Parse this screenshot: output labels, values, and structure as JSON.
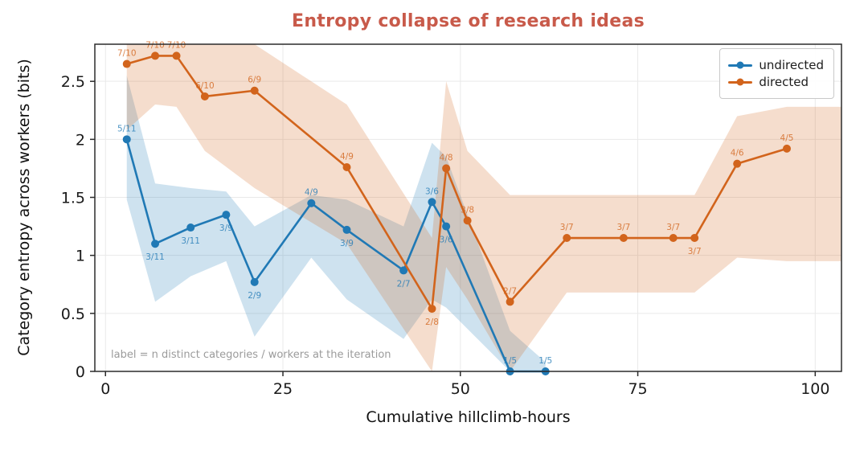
{
  "chart_data": {
    "type": "line",
    "title": "Entropy collapse of research ideas",
    "xlabel": "Cumulative hillclimb-hours",
    "ylabel": "Category entropy across workers (bits)",
    "annotation": "label = n distinct categories / workers at the iteration",
    "legend_position": "top-right",
    "grid": true,
    "xlim": [
      -1.5,
      103.7
    ],
    "ylim": [
      0,
      2.82
    ],
    "xticks": [
      0,
      25,
      50,
      75,
      100
    ],
    "xtick_labels": [
      "0",
      "25",
      "50",
      "75",
      "100"
    ],
    "yticks": [
      0,
      0.5,
      1,
      1.5,
      2,
      2.5
    ],
    "ytick_labels": [
      "0",
      "0.5",
      "1",
      "1.5",
      "2",
      "2.5"
    ],
    "colors": {
      "undirected": "#2079b5",
      "directed": "#d2641c",
      "title": "#c85a4a",
      "annotation": "#9b9b9b",
      "grid": "#e9e9e9",
      "spine": "#2b2b2b",
      "tick_text": "#1a1a1a"
    },
    "series": [
      {
        "name": "undirected",
        "color": "#2079b5",
        "points": [
          {
            "x": 3,
            "y": 2.0,
            "label": "5/11",
            "label_pos": "above"
          },
          {
            "x": 7,
            "y": 1.1,
            "label": "3/11",
            "label_pos": "below"
          },
          {
            "x": 12,
            "y": 1.24,
            "label": "3/11",
            "label_pos": "below"
          },
          {
            "x": 17,
            "y": 1.35,
            "label": "3/9",
            "label_pos": "below"
          },
          {
            "x": 21,
            "y": 0.77,
            "label": "2/9",
            "label_pos": "below"
          },
          {
            "x": 29,
            "y": 1.45,
            "label": "4/9",
            "label_pos": "above"
          },
          {
            "x": 34,
            "y": 1.22,
            "label": "3/9",
            "label_pos": "below"
          },
          {
            "x": 42,
            "y": 0.87,
            "label": "2/7",
            "label_pos": "below"
          },
          {
            "x": 46,
            "y": 1.46,
            "label": "3/6",
            "label_pos": "above"
          },
          {
            "x": 48,
            "y": 1.25,
            "label": "3/6",
            "label_pos": "below"
          },
          {
            "x": 57,
            "y": 0.0,
            "label": "1/5",
            "label_pos": "above"
          },
          {
            "x": 62,
            "y": 0.0,
            "label": "1/5",
            "label_pos": "above"
          }
        ],
        "band": {
          "x": [
            3,
            7,
            12,
            17,
            21,
            29,
            34,
            42,
            46,
            48,
            57,
            62
          ],
          "upper": [
            2.55,
            1.62,
            1.58,
            1.55,
            1.25,
            1.52,
            1.48,
            1.25,
            1.97,
            1.85,
            0.35,
            0.08
          ],
          "lower": [
            1.48,
            0.6,
            0.82,
            0.95,
            0.3,
            0.98,
            0.62,
            0.28,
            0.62,
            0.55,
            0.0,
            0.0
          ]
        }
      },
      {
        "name": "directed",
        "color": "#d2641c",
        "points": [
          {
            "x": 3,
            "y": 2.65,
            "label": "7/10",
            "label_pos": "above"
          },
          {
            "x": 7,
            "y": 2.72,
            "label": "7/10",
            "label_pos": "above"
          },
          {
            "x": 10,
            "y": 2.72,
            "label": "7/10",
            "label_pos": "above"
          },
          {
            "x": 14,
            "y": 2.37,
            "label": "6/10",
            "label_pos": "above"
          },
          {
            "x": 21,
            "y": 2.42,
            "label": "6/9",
            "label_pos": "above"
          },
          {
            "x": 34,
            "y": 1.76,
            "label": "4/9",
            "label_pos": "above"
          },
          {
            "x": 46,
            "y": 0.54,
            "label": "2/8",
            "label_pos": "below"
          },
          {
            "x": 48,
            "y": 1.75,
            "label": "4/8",
            "label_pos": "above"
          },
          {
            "x": 51,
            "y": 1.3,
            "label": "3/8",
            "label_pos": "above"
          },
          {
            "x": 57,
            "y": 0.6,
            "label": "2/7",
            "label_pos": "above"
          },
          {
            "x": 65,
            "y": 1.15,
            "label": "3/7",
            "label_pos": "above"
          },
          {
            "x": 73,
            "y": 1.15,
            "label": "3/7",
            "label_pos": "above"
          },
          {
            "x": 80,
            "y": 1.15,
            "label": "3/7",
            "label_pos": "above"
          },
          {
            "x": 83,
            "y": 1.15,
            "label": "3/7",
            "label_pos": "below"
          },
          {
            "x": 89,
            "y": 1.79,
            "label": "4/6",
            "label_pos": "above"
          },
          {
            "x": 96,
            "y": 1.92,
            "label": "4/5",
            "label_pos": "above"
          }
        ],
        "band": {
          "x": [
            3,
            7,
            10,
            14,
            21,
            34,
            46,
            48,
            51,
            57,
            65,
            73,
            80,
            83,
            89,
            96,
            103.7
          ],
          "upper": [
            2.82,
            2.82,
            2.82,
            2.82,
            2.82,
            2.3,
            1.15,
            2.5,
            1.9,
            1.52,
            1.52,
            1.52,
            1.52,
            1.52,
            2.2,
            2.28,
            2.28
          ],
          "lower": [
            2.08,
            2.3,
            2.28,
            1.9,
            1.58,
            1.1,
            0.0,
            0.9,
            0.62,
            0.0,
            0.68,
            0.68,
            0.68,
            0.68,
            0.98,
            0.95,
            0.95
          ]
        }
      }
    ]
  }
}
